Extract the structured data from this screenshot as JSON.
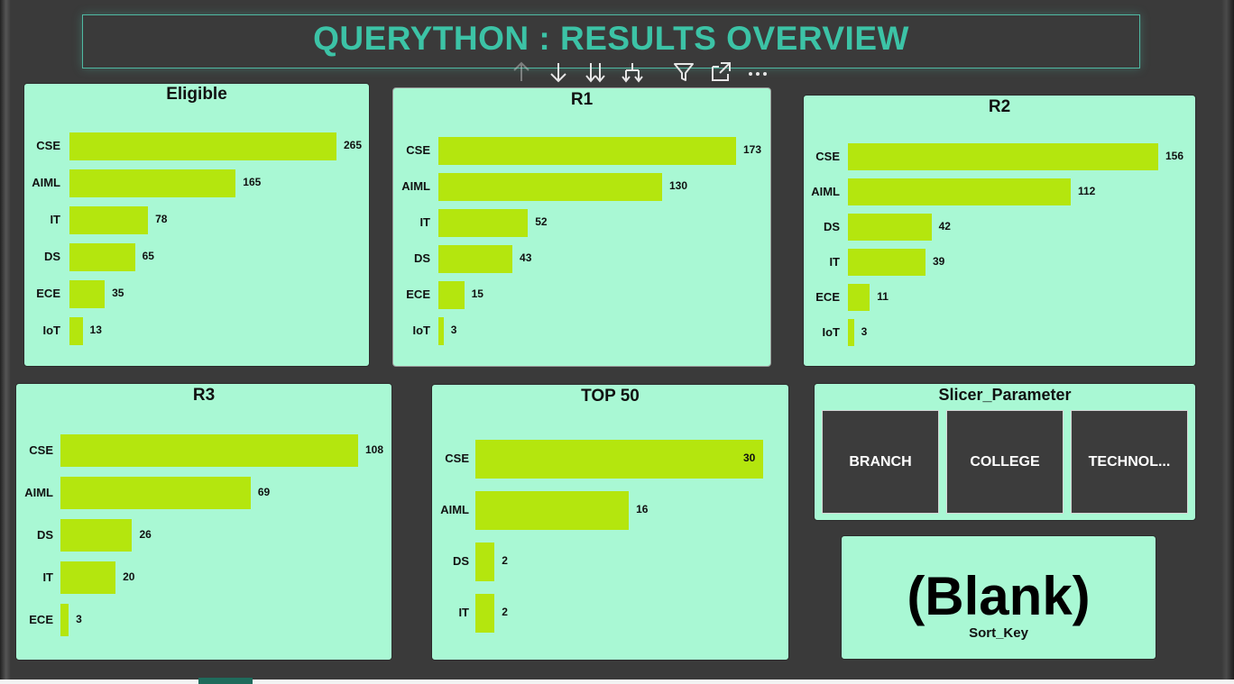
{
  "header": {
    "title": "QUERYTHON : RESULTS OVERVIEW"
  },
  "toolbar": {
    "icons": [
      "arrow-up-icon",
      "arrow-down-icon",
      "double-arrow-down-icon",
      "expand-hierarchy-icon",
      "filter-icon",
      "focus-mode-icon",
      "more-options-icon"
    ]
  },
  "colors": {
    "background": "#3a3a3a",
    "panel": "#a9f8d4",
    "bar": "#b4e60e",
    "title": "#3cc3a6"
  },
  "chart_data": [
    {
      "id": "eligible",
      "type": "bar",
      "orientation": "horizontal",
      "title": "Eligible",
      "categories": [
        "CSE",
        "AIML",
        "IT",
        "DS",
        "ECE",
        "IoT"
      ],
      "values": [
        265,
        165,
        78,
        65,
        35,
        13
      ]
    },
    {
      "id": "r1",
      "type": "bar",
      "orientation": "horizontal",
      "title": "R1",
      "categories": [
        "CSE",
        "AIML",
        "IT",
        "DS",
        "ECE",
        "IoT"
      ],
      "values": [
        173,
        130,
        52,
        43,
        15,
        3
      ]
    },
    {
      "id": "r2",
      "type": "bar",
      "orientation": "horizontal",
      "title": "R2",
      "categories": [
        "CSE",
        "AIML",
        "DS",
        "IT",
        "ECE",
        "IoT"
      ],
      "values": [
        156,
        112,
        42,
        39,
        11,
        3
      ]
    },
    {
      "id": "r3",
      "type": "bar",
      "orientation": "horizontal",
      "title": "R3",
      "categories": [
        "CSE",
        "AIML",
        "DS",
        "IT",
        "ECE"
      ],
      "values": [
        108,
        69,
        26,
        20,
        3
      ]
    },
    {
      "id": "top50",
      "type": "bar",
      "orientation": "horizontal",
      "title": "TOP 50",
      "categories": [
        "CSE",
        "AIML",
        "DS",
        "IT"
      ],
      "values": [
        30,
        16,
        2,
        2
      ]
    }
  ],
  "slicer": {
    "title": "Slicer_Parameter",
    "options": [
      "BRANCH",
      "COLLEGE",
      "TECHNOL..."
    ]
  },
  "card": {
    "value": "(Blank)",
    "label": "Sort_Key"
  }
}
